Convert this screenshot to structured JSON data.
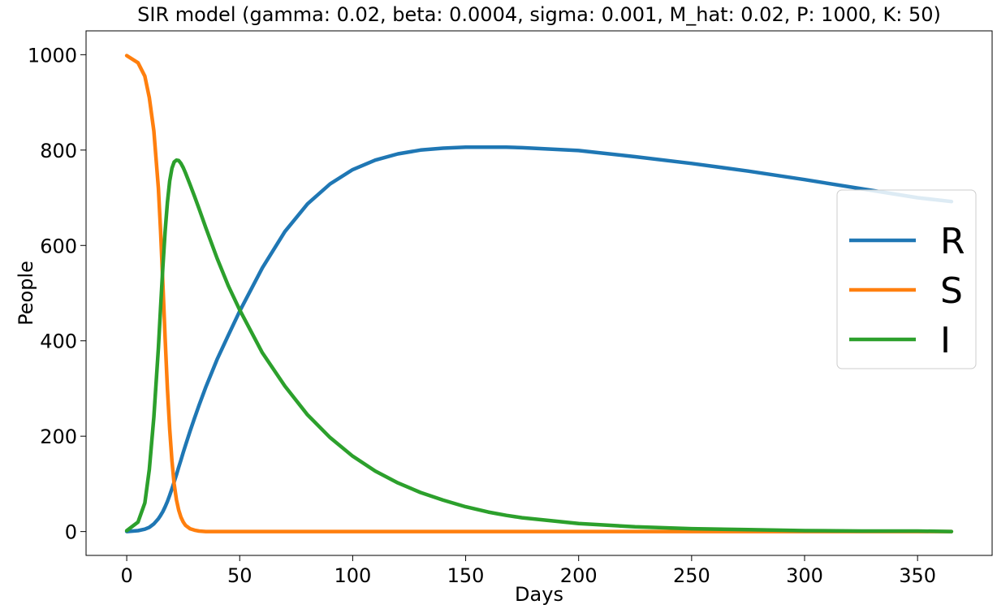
{
  "chart_data": {
    "type": "line",
    "title": "SIR model (gamma: 0.02, beta: 0.0004, sigma: 0.001, M_hat: 0.02, P: 1000, K: 50)",
    "xlabel": "Days",
    "ylabel": "People",
    "xlim": [
      -18,
      383
    ],
    "ylim": [
      -50,
      1050
    ],
    "xticks": [
      0,
      50,
      100,
      150,
      200,
      250,
      300,
      350
    ],
    "yticks": [
      0,
      200,
      400,
      600,
      800,
      1000
    ],
    "grid": false,
    "legend_position": "center-right",
    "x": [
      0,
      5,
      8,
      10,
      12,
      14,
      15,
      16,
      17,
      18,
      19,
      20,
      21,
      22,
      23,
      24,
      25,
      26,
      28,
      30,
      32,
      35,
      40,
      45,
      50,
      60,
      70,
      80,
      90,
      100,
      110,
      120,
      130,
      140,
      150,
      160,
      168,
      175,
      200,
      225,
      250,
      275,
      300,
      325,
      350,
      365
    ],
    "series": [
      {
        "name": "R",
        "color": "#1f77b4",
        "values": [
          0,
          2,
          5,
          9,
          16,
          27,
          34,
          42,
          52,
          63,
          76,
          90,
          104,
          119,
          135,
          150,
          166,
          181,
          210,
          238,
          265,
          303,
          361,
          412,
          462,
          553,
          629,
          687,
          729,
          759,
          779,
          792,
          800,
          804,
          806,
          806,
          806,
          805,
          799,
          786,
          772,
          756,
          738,
          719,
          700,
          692
        ]
      },
      {
        "name": "S",
        "color": "#ff7f0e",
        "values": [
          998,
          983,
          955,
          910,
          840,
          720,
          630,
          520,
          405,
          300,
          215,
          148,
          100,
          67,
          45,
          30,
          20,
          13,
          6,
          3,
          1,
          0,
          0,
          0,
          0,
          0,
          0,
          0,
          0,
          0,
          0,
          0,
          0,
          0,
          0,
          0,
          0,
          0,
          0,
          0,
          0,
          0,
          0,
          0,
          0,
          0
        ]
      },
      {
        "name": "I",
        "color": "#2ca02c",
        "values": [
          2,
          20,
          60,
          130,
          240,
          385,
          470,
          555,
          630,
          690,
          735,
          762,
          775,
          779,
          778,
          772,
          763,
          752,
          728,
          703,
          677,
          637,
          573,
          515,
          465,
          375,
          305,
          245,
          197,
          158,
          127,
          102,
          82,
          66,
          52,
          41,
          34,
          29,
          17,
          10,
          6,
          4,
          2,
          1,
          1,
          0
        ]
      }
    ]
  }
}
